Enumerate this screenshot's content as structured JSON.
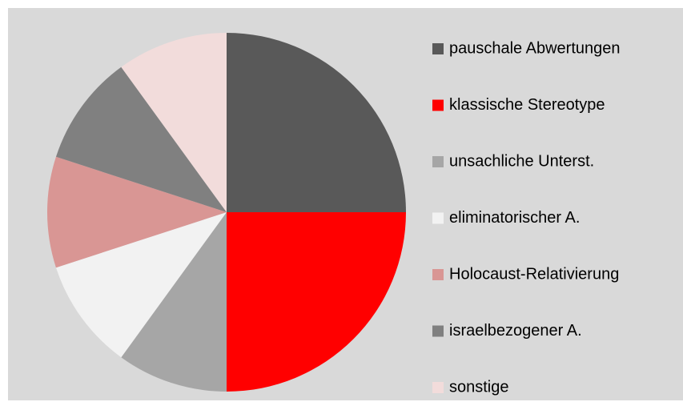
{
  "chart_data": {
    "type": "pie",
    "categories": [
      "pauschale Abwertungen",
      "klassische Stereotype",
      "unsachliche Unterst.",
      "eliminatorischer A.",
      "Holocaust-Relativierung",
      "israelbezogener A.",
      "sonstige"
    ],
    "values": [
      25,
      25,
      10,
      10,
      10,
      10,
      10
    ],
    "colors": [
      "#595959",
      "#ff0000",
      "#a6a6a6",
      "#f2f2f2",
      "#d99694",
      "#808080",
      "#f2dcdb"
    ],
    "legend": "right"
  }
}
